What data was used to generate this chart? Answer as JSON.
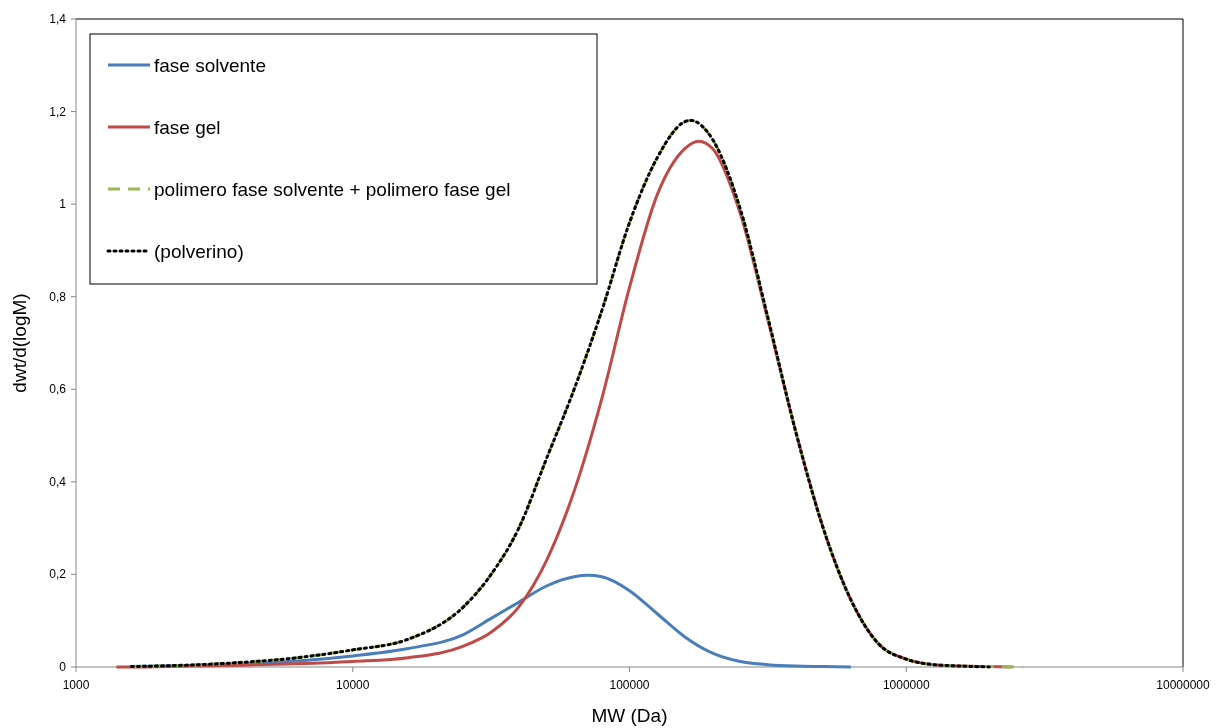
{
  "chart_data": {
    "type": "line",
    "xlabel": "MW (Da)",
    "ylabel": "dwt/d(logM)",
    "log": "x",
    "legend": "top left",
    "grid": false,
    "xlim": [
      1000,
      10000000
    ],
    "xticks": [
      1000,
      10000,
      100000,
      1000000,
      10000000
    ],
    "ylim": [
      0,
      1.4
    ],
    "yticks": [
      0,
      {
        "value": 0.2,
        "label": "0,2"
      },
      {
        "value": 0.4,
        "label": "0,4"
      },
      {
        "value": 0.6,
        "label": "0,6"
      },
      {
        "value": 0.8,
        "label": "0,8"
      },
      1,
      {
        "value": 1.2,
        "label": "1,2"
      },
      {
        "value": 1.4,
        "label": "1,4"
      }
    ],
    "series": [
      {
        "name": "fase solvente",
        "color": "#4a7ebb",
        "line_style": "solid",
        "x": [
          1585,
          2512,
          3981,
          6310,
          10000,
          15849,
          25119,
          31623,
          39811,
          50119,
          63096,
          70795,
          79433,
          100000,
          125893,
          158489,
          199526,
          251189,
          316228,
          398107,
          501187,
          630957
        ],
        "values": [
          0.001,
          0.003,
          0.007,
          0.013,
          0.024,
          0.04,
          0.07,
          0.105,
          0.14,
          0.175,
          0.195,
          0.198,
          0.195,
          0.165,
          0.115,
          0.065,
          0.03,
          0.012,
          0.005,
          0.002,
          0.001,
          0
        ]
      },
      {
        "name": "fase gel",
        "color": "#be4b48",
        "line_style": "solid",
        "x": [
          1400,
          1585,
          2512,
          3981,
          6310,
          10000,
          15849,
          25119,
          31623,
          39811,
          50119,
          63096,
          79433,
          100000,
          125893,
          158489,
          177828,
          199526,
          251189,
          316228,
          398107,
          501187,
          630957,
          794328,
          1000000,
          1258925,
          1584893,
          1995262,
          2398833
        ],
        "values": [
          0,
          0,
          0.002,
          0.004,
          0.007,
          0.012,
          0.02,
          0.045,
          0.075,
          0.13,
          0.23,
          0.38,
          0.58,
          0.82,
          1.02,
          1.12,
          1.136,
          1.12,
          0.98,
          0.75,
          0.51,
          0.3,
          0.145,
          0.05,
          0.017,
          0.005,
          0.002,
          0.001,
          0
        ]
      },
      {
        "name": "polimero fase solvente + polimero fase gel",
        "color": "#98b954",
        "line_style": "dashed",
        "x": [
          1585,
          2512,
          3981,
          6310,
          10000,
          15849,
          25119,
          31623,
          39811,
          50119,
          63096,
          79433,
          100000,
          125893,
          158489,
          165959,
          199526,
          251189,
          316228,
          398107,
          501187,
          630957,
          794328,
          1000000,
          1258925,
          1584893,
          1995262,
          2630268
        ],
        "values": [
          0.001,
          0.004,
          0.01,
          0.02,
          0.037,
          0.06,
          0.13,
          0.2,
          0.3,
          0.45,
          0.6,
          0.77,
          0.96,
          1.1,
          1.178,
          1.181,
          1.14,
          0.99,
          0.755,
          0.51,
          0.3,
          0.145,
          0.05,
          0.017,
          0.005,
          0.002,
          0.001,
          0
        ]
      },
      {
        "name": "(polverino)",
        "color": "#000000",
        "line_style": "dotted",
        "x": [
          1585,
          2512,
          3981,
          6310,
          10000,
          15849,
          25119,
          31623,
          39811,
          50119,
          63096,
          79433,
          100000,
          125893,
          158489,
          165959,
          199526,
          251189,
          316228,
          398107,
          501187,
          630957,
          794328,
          1000000,
          1258925,
          1584893,
          1995262
        ],
        "values": [
          0.001,
          0.004,
          0.01,
          0.02,
          0.037,
          0.06,
          0.13,
          0.2,
          0.3,
          0.45,
          0.6,
          0.77,
          0.96,
          1.1,
          1.178,
          1.181,
          1.14,
          0.99,
          0.755,
          0.51,
          0.3,
          0.145,
          0.05,
          0.017,
          0.005,
          0.002,
          0
        ]
      }
    ]
  }
}
